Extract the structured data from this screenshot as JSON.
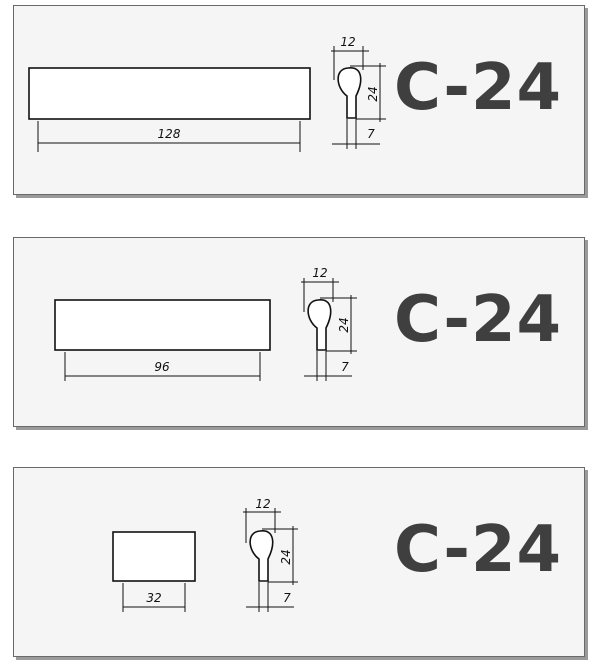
{
  "products": [
    {
      "code": "C-24",
      "length": "128",
      "profile": {
        "width": "12",
        "height": "24",
        "base": "7"
      }
    },
    {
      "code": "C-24",
      "length": "96",
      "profile": {
        "width": "12",
        "height": "24",
        "base": "7"
      }
    },
    {
      "code": "C-24",
      "length": "32",
      "profile": {
        "width": "12",
        "height": "24",
        "base": "7"
      }
    }
  ]
}
